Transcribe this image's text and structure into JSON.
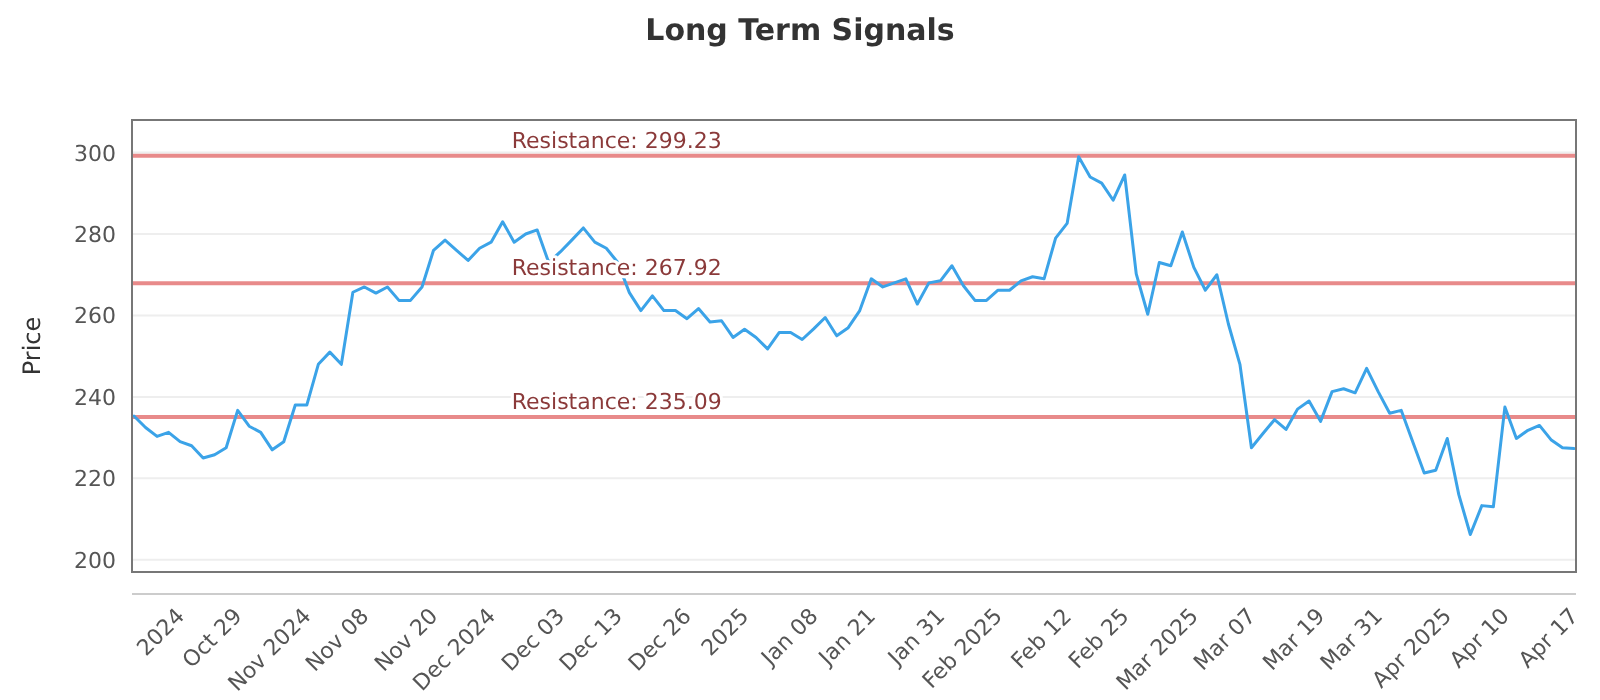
{
  "chart_data": {
    "type": "line",
    "title": "Long Term Signals",
    "ylabel": "Price",
    "categories": [
      null,
      null,
      null,
      null,
      "2024",
      null,
      null,
      null,
      null,
      "Oct 29",
      null,
      null,
      null,
      null,
      null,
      "Nov 2024",
      null,
      null,
      null,
      null,
      "Nov 08",
      null,
      null,
      null,
      null,
      null,
      "Nov 20",
      null,
      null,
      null,
      null,
      "Dec 2024",
      null,
      null,
      null,
      null,
      null,
      "Dec 03",
      null,
      null,
      null,
      null,
      "Dec 13",
      null,
      null,
      null,
      null,
      null,
      "Dec 26",
      null,
      null,
      null,
      null,
      "2025",
      null,
      null,
      null,
      null,
      null,
      "Jan 08",
      null,
      null,
      null,
      null,
      "Jan 21",
      null,
      null,
      null,
      null,
      null,
      "Jan 31",
      null,
      null,
      null,
      null,
      "Feb 2025",
      null,
      null,
      null,
      null,
      null,
      "Feb 12",
      null,
      null,
      null,
      null,
      "Feb 25",
      null,
      null,
      null,
      null,
      null,
      "Mar 2025",
      null,
      null,
      null,
      null,
      "Mar 07",
      null,
      null,
      null,
      null,
      null,
      "Mar 19",
      null,
      null,
      null,
      null,
      "Mar 31",
      null,
      null,
      null,
      null,
      null,
      "Apr 2025",
      null,
      null,
      null,
      null,
      "Apr 10",
      null,
      null,
      null,
      null,
      null,
      "Apr 17"
    ],
    "series": [
      {
        "color": "#3ba3e8",
        "values": [
          235.3,
          232.5,
          230.3,
          231.3,
          229,
          228,
          225,
          225.8,
          227.5,
          236.7,
          232.8,
          231.3,
          227,
          229,
          238,
          238,
          248,
          251,
          248,
          265.7,
          267,
          265.5,
          267,
          263.7,
          263.7,
          267,
          276,
          278.5,
          276,
          273.5,
          276.5,
          278,
          283,
          278,
          280,
          281,
          273,
          275.6,
          278.5,
          281.5,
          278,
          276.5,
          273,
          265.6,
          261.2,
          264.8,
          261.2,
          261.2,
          259.2,
          261.7,
          258.4,
          258.7,
          254.6,
          256.6,
          254.6,
          251.8,
          255.8,
          255.8,
          254.1,
          256.7,
          259.5,
          255,
          257,
          261.2,
          269,
          267,
          268,
          269,
          262.8,
          268,
          268.5,
          272.2,
          267.3,
          263.7,
          263.7,
          266.2,
          266.2,
          268.5,
          269.5,
          269,
          279,
          282.6,
          299,
          294,
          292.5,
          288.3,
          294.5,
          270.2,
          260.3,
          273,
          272.2,
          280.5,
          271.8,
          266.2,
          270,
          257.9,
          248,
          227.5,
          231,
          234.4,
          232,
          237,
          239,
          234,
          241.3,
          242,
          241,
          247,
          241.3,
          236,
          236.7,
          229,
          221.3,
          222,
          229.8,
          216,
          206.2,
          213.3,
          213,
          237.5,
          229.8,
          231.8,
          233,
          229.5,
          227.5,
          227.3
        ]
      }
    ],
    "ylim": [
      197,
      308
    ],
    "yticks": [
      200,
      220,
      240,
      260,
      280,
      300
    ],
    "grid": "y",
    "marker": "none",
    "line_style": "solid",
    "ref_lines": [
      {
        "axis": "y",
        "value": 299.23,
        "label": "Resistance: 299.23",
        "color": "#e88a8a"
      },
      {
        "axis": "y",
        "value": 267.92,
        "label": "Resistance: 267.92",
        "color": "#e88a8a"
      },
      {
        "axis": "y",
        "value": 235.09,
        "label": "Resistance: 235.09",
        "color": "#e88a8a"
      }
    ]
  }
}
